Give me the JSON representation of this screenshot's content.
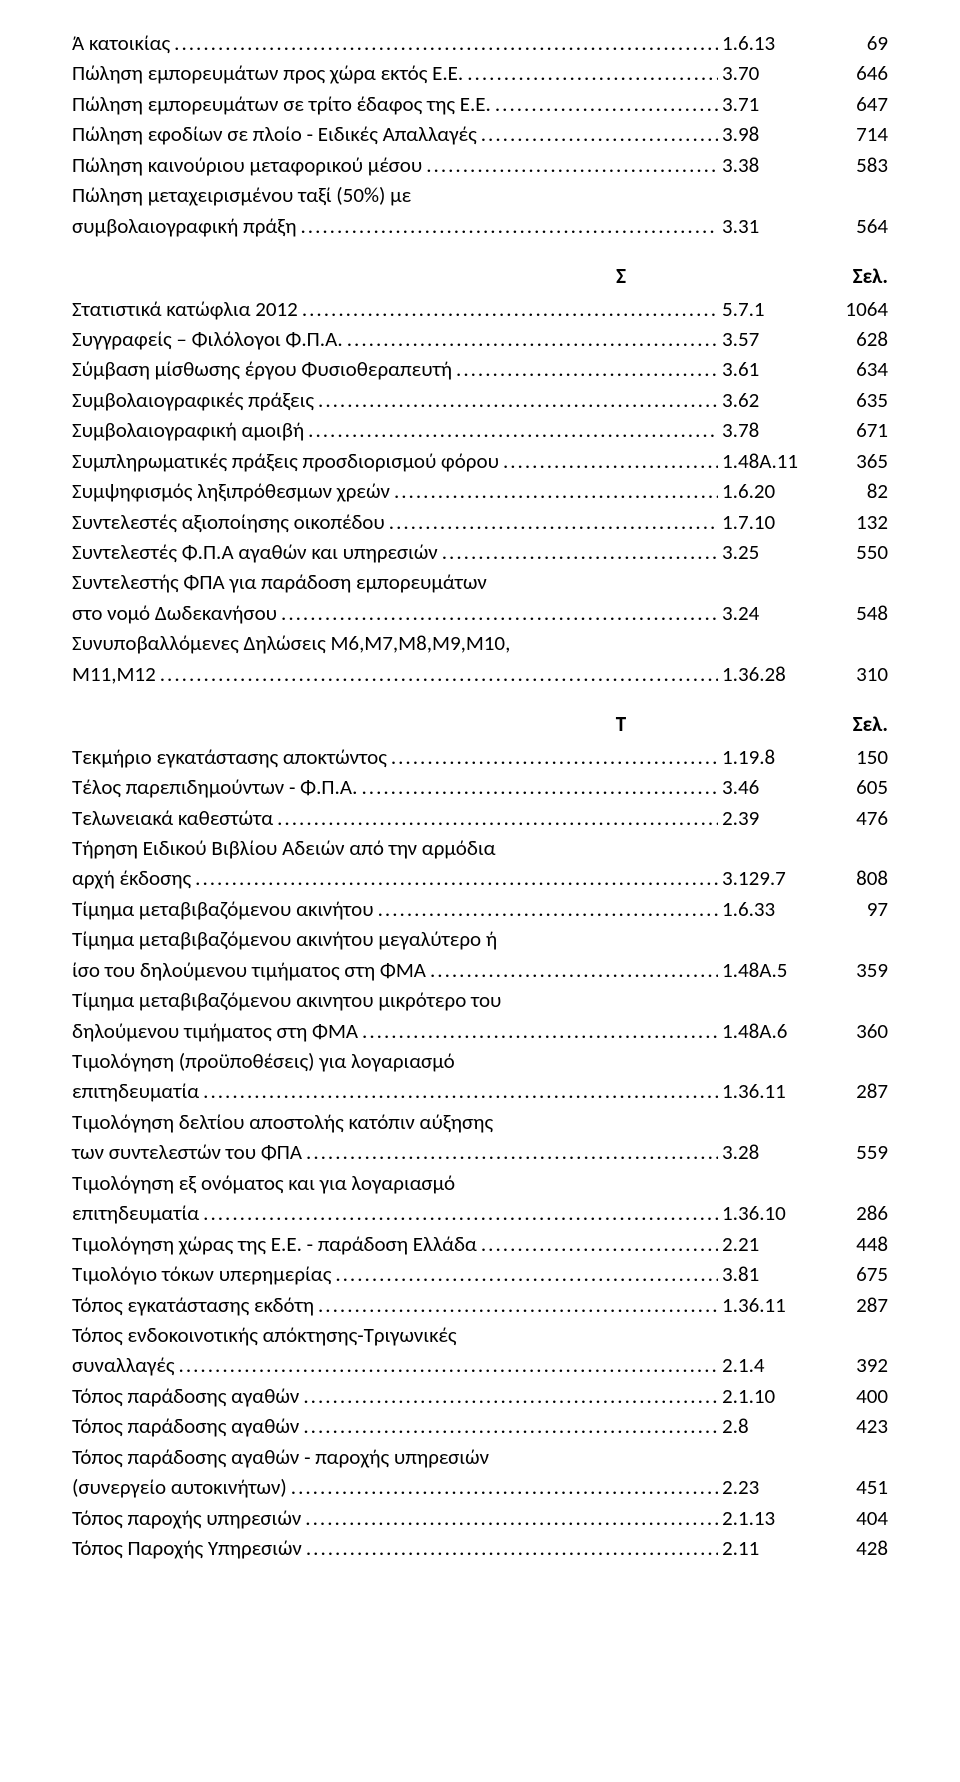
{
  "sections": [
    {
      "letter": "",
      "sel": "",
      "entries": [
        {
          "label": "Ά κατοικίας",
          "ref": "1.6.13",
          "pg": "69"
        },
        {
          "label": "Πώληση εμπορευμάτων προς χώρα εκτός Ε.Ε.",
          "ref": "3.70",
          "pg": "646"
        },
        {
          "label": "Πώληση εμπορευμάτων σε τρίτο έδαφος της Ε.Ε.",
          "ref": "3.71",
          "pg": "647"
        },
        {
          "label": "Πώληση εφοδίων σε πλοίο - Ειδικές Απαλλαγές",
          "ref": "3.98",
          "pg": "714"
        },
        {
          "label": "Πώληση καινούριου μεταφορικού μέσου",
          "ref": "3.38",
          "pg": "583"
        },
        {
          "prefix": "Πώληση μεταχειρισμένου ταξί (50%) με",
          "label": "συμβολαιογραφική πράξη",
          "ref": "3.31",
          "pg": "564"
        }
      ]
    },
    {
      "letter": "Σ",
      "sel": "Σελ.",
      "entries": [
        {
          "label": "Στατιστικά κατώφλια 2012",
          "ref": "5.7.1",
          "pg": "1064"
        },
        {
          "label": "Συγγραφείς – Φιλόλογοι Φ.Π.Α.",
          "ref": "3.57",
          "pg": "628"
        },
        {
          "label": "Σύμβαση μίσθωσης έργου Φυσιοθεραπευτή",
          "ref": "3.61",
          "pg": "634"
        },
        {
          "label": "Συμβολαιογραφικές πράξεις",
          "ref": "3.62",
          "pg": "635"
        },
        {
          "label": "Συμβολαιογραφική αμοιβή",
          "ref": "3.78",
          "pg": "671"
        },
        {
          "label": "Συμπληρωματικές πράξεις προσδιορισμού φόρου",
          "ref": "1.48Α.11",
          "pg": "365"
        },
        {
          "label": "Συμψηφισμός ληξιπρόθεσμων χρεών",
          "ref": "1.6.20",
          "pg": "82"
        },
        {
          "label": "Συντελεστές αξιοποίησης οικοπέδου",
          "ref": "1.7.10",
          "pg": "132"
        },
        {
          "label": "Συντελεστές Φ.Π.Α αγαθών και υπηρεσιών",
          "ref": "3.25",
          "pg": "550"
        },
        {
          "prefix": "Συντελεστής ΦΠΑ για παράδοση εμπορευμάτων",
          "label": "στο νομό Δωδεκανήσου",
          "ref": "3.24",
          "pg": "548"
        },
        {
          "prefix": "Συνυποβαλλόμενες Δηλώσεις Μ6,Μ7,Μ8,Μ9,Μ10,",
          "label": "Μ11,Μ12",
          "ref": "1.36.28",
          "pg": "310"
        }
      ]
    },
    {
      "letter": "Τ",
      "sel": "Σελ.",
      "entries": [
        {
          "label": "Τεκμήριο εγκατάστασης αποκτώντος",
          "ref": "1.19.8",
          "pg": "150"
        },
        {
          "label": "Τέλος παρεπιδημούντων  - Φ.Π.Α.",
          "ref": "3.46",
          "pg": "605"
        },
        {
          "label": "Τελωνειακά καθεστώτα",
          "ref": "2.39",
          "pg": "476"
        },
        {
          "prefix": "Τήρηση Ειδικού Βιβλίου Αδειών από την αρμόδια",
          "label": "αρχή έκδοσης",
          "ref": "3.129.7",
          "pg": "808"
        },
        {
          "label": "Τίμημα μεταβιβαζόμενου ακινήτου",
          "ref": "1.6.33",
          "pg": "97"
        },
        {
          "prefix": "Τίμημα μεταβιβαζόμενου ακινήτου μεγαλύτερο ή",
          "label": "ίσο του δηλούμενου τιμήματος στη ΦΜΑ",
          "ref": "1.48Α.5",
          "pg": "359"
        },
        {
          "prefix": "Τίμημα μεταβιβαζόμενου ακινητου μικρότερο του",
          "label": "δηλούμενου τιμήματος στη ΦΜΑ",
          "ref": "1.48Α.6",
          "pg": "360"
        },
        {
          "prefix": "Τιμολόγηση (προϋποθέσεις) για λογαριασμό",
          "label": "επιτηδευματία",
          "ref": "1.36.11",
          "pg": "287"
        },
        {
          "prefix": "Τιμολόγηση δελτίου αποστολής κατόπιν αύξησης",
          "label": "των συντελεστών του ΦΠΑ",
          "ref": "3.28",
          "pg": "559"
        },
        {
          "prefix": "Τιμολόγηση εξ ονόματος και για λογαριασμό",
          "label": "επιτηδευματία",
          "ref": "1.36.10",
          "pg": "286"
        },
        {
          "label": "Τιμολόγηση χώρας της Ε.Ε. - παράδοση Ελλάδα",
          "ref": "2.21",
          "pg": "448"
        },
        {
          "label": "Τιμολόγιο τόκων  υπερημερίας",
          "ref": "3.81",
          "pg": "675"
        },
        {
          "label": "Τόπος εγκατάστασης εκδότη",
          "ref": "1.36.11",
          "pg": "287"
        },
        {
          "prefix": "Τόπος ενδοκοινοτικής απόκτησης-Τριγωνικές",
          "label": "συναλλαγές",
          "ref": "2.1.4",
          "pg": "392"
        },
        {
          "label": "Τόπος παράδοσης αγαθών",
          "ref": "2.1.10",
          "pg": "400"
        },
        {
          "label": "Τόπος παράδοσης αγαθών",
          "ref": "2.8",
          "pg": "423"
        },
        {
          "prefix": "Τόπος παράδοσης αγαθών - παροχής υπηρεσιών",
          "label": "(συνεργείο αυτοκινήτων)",
          "ref": "2.23",
          "pg": "451"
        },
        {
          "label": "Τόπος παροχής υπηρεσιών",
          "ref": "2.1.13",
          "pg": "404"
        },
        {
          "label": "Τόπος Παροχής Υπηρεσιών",
          "ref": "2.11",
          "pg": "428"
        }
      ]
    }
  ],
  "dot_fill": "................................................................................................................................................................"
}
